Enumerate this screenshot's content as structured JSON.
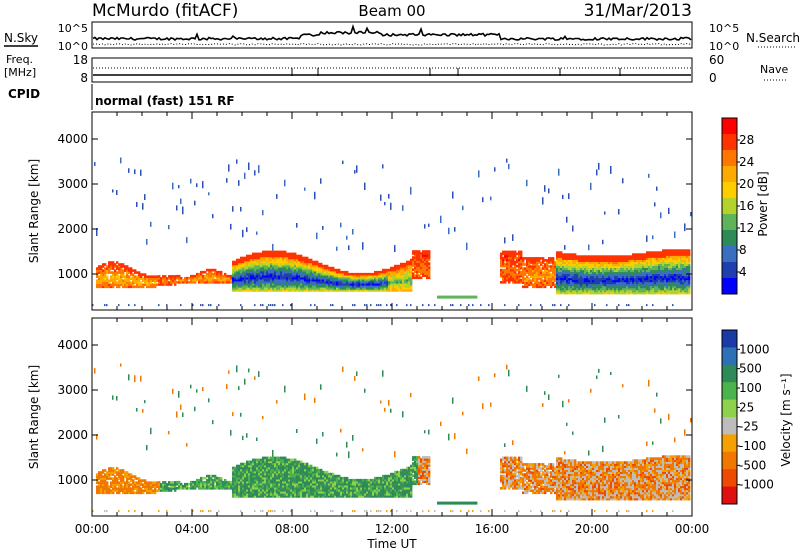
{
  "header": {
    "station": "McMurdo (fitACF)",
    "beam": "Beam 00",
    "date": "31/Mar/2013"
  },
  "panels": {
    "noise": {
      "left_label": "N.Sky",
      "right_label": "N.Search",
      "left_ticks": [
        "10^5",
        "10^0"
      ],
      "right_ticks": [
        "10^5",
        "10^0"
      ]
    },
    "freq": {
      "left_label_1": "Freq.",
      "left_label_2": "[MHz]",
      "right_label": "Nave",
      "left_ticks": [
        "18",
        "8"
      ],
      "right_ticks": [
        "60",
        "0"
      ]
    },
    "cpid": {
      "label": "CPID",
      "text": "normal (fast) 151 RF"
    }
  },
  "colors": {
    "scatter_blue": "#2a4fb8",
    "scatter_red": "#e8201a",
    "scatter_green": "#2e8b57",
    "scatter_orange": "#f07800",
    "scatter_gray": "#bdbdbd"
  },
  "chart_data": [
    {
      "type": "heatmap",
      "name": "power",
      "ylabel": "Slant Range [km]",
      "ylim": [
        200,
        4600
      ],
      "yticks": [
        "1000",
        "2000",
        "3000",
        "4000"
      ],
      "xlim": [
        0,
        24
      ],
      "colorbar_label": "Power [dB]",
      "colorbar_ticks": [
        "28",
        "24",
        "20",
        "16",
        "12",
        "8",
        "4"
      ],
      "colorbar_colors": [
        "#ff0000",
        "#ff3300",
        "#ff7700",
        "#ffaa00",
        "#ffcc00",
        "#b4d22a",
        "#5fb45a",
        "#2e8b57",
        "#3a6fc0",
        "#1f3fb0",
        "#0000ff"
      ]
    },
    {
      "type": "heatmap",
      "name": "velocity",
      "ylabel": "Slant Range [km]",
      "ylim": [
        200,
        4600
      ],
      "yticks": [
        "1000",
        "2000",
        "3000",
        "4000"
      ],
      "xlim": [
        0,
        24
      ],
      "xlabel": "Time UT",
      "xticks": [
        "00:00",
        "04:00",
        "08:00",
        "12:00",
        "16:00",
        "20:00",
        "00:00"
      ],
      "colorbar_label": "Velocity [m s⁻¹]",
      "colorbar_ticks": [
        "1000",
        "500",
        "100",
        "25",
        "-25",
        "-100",
        "-500",
        "-1000"
      ],
      "colorbar_colors": [
        "#1a3aa8",
        "#2e70b8",
        "#2e8b57",
        "#4bb34b",
        "#8ed14b",
        "#bdbdbd",
        "#f5a000",
        "#f07800",
        "#ee4a00",
        "#e01010"
      ]
    }
  ]
}
